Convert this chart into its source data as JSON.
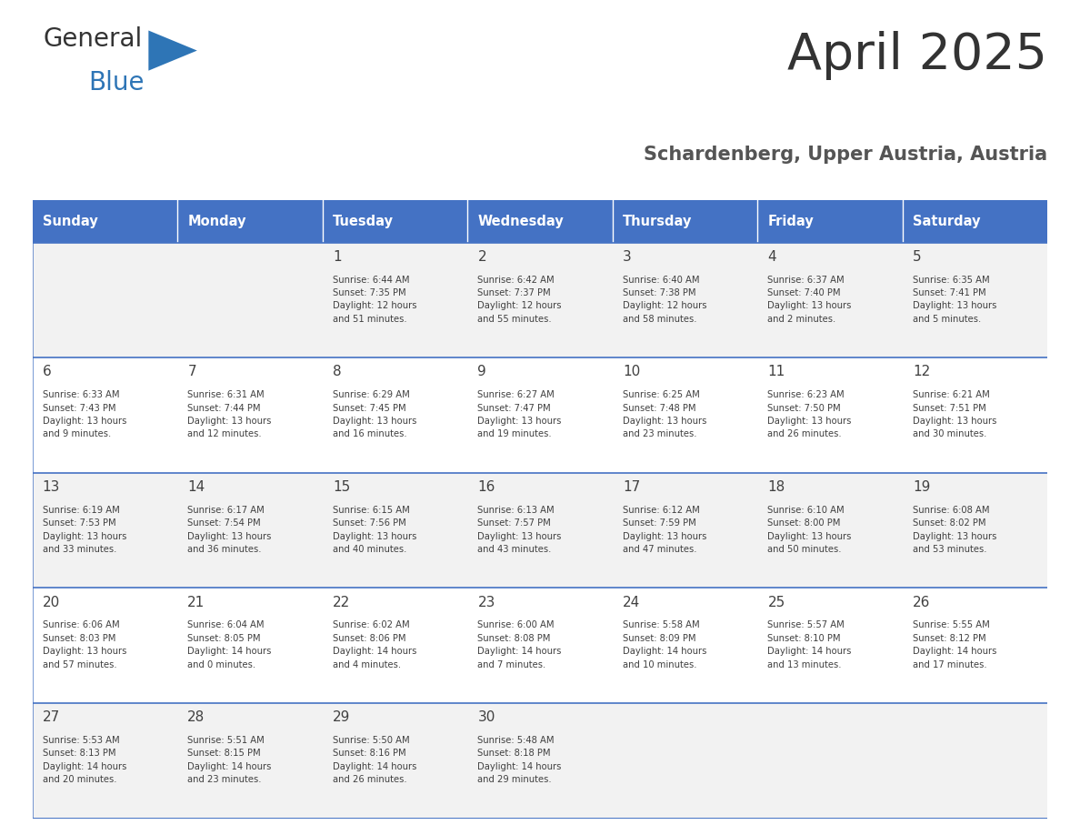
{
  "title": "April 2025",
  "subtitle": "Schardenberg, Upper Austria, Austria",
  "header_color": "#4472C4",
  "header_text_color": "#FFFFFF",
  "cell_bg_even": "#F2F2F2",
  "cell_bg_odd": "#FFFFFF",
  "border_color": "#4472C4",
  "text_color": "#404040",
  "logo_general_color": "#333333",
  "logo_blue_color": "#2E75B6",
  "days_of_week": [
    "Sunday",
    "Monday",
    "Tuesday",
    "Wednesday",
    "Thursday",
    "Friday",
    "Saturday"
  ],
  "calendar": [
    [
      {
        "day": "",
        "info": ""
      },
      {
        "day": "",
        "info": ""
      },
      {
        "day": "1",
        "info": "Sunrise: 6:44 AM\nSunset: 7:35 PM\nDaylight: 12 hours\nand 51 minutes."
      },
      {
        "day": "2",
        "info": "Sunrise: 6:42 AM\nSunset: 7:37 PM\nDaylight: 12 hours\nand 55 minutes."
      },
      {
        "day": "3",
        "info": "Sunrise: 6:40 AM\nSunset: 7:38 PM\nDaylight: 12 hours\nand 58 minutes."
      },
      {
        "day": "4",
        "info": "Sunrise: 6:37 AM\nSunset: 7:40 PM\nDaylight: 13 hours\nand 2 minutes."
      },
      {
        "day": "5",
        "info": "Sunrise: 6:35 AM\nSunset: 7:41 PM\nDaylight: 13 hours\nand 5 minutes."
      }
    ],
    [
      {
        "day": "6",
        "info": "Sunrise: 6:33 AM\nSunset: 7:43 PM\nDaylight: 13 hours\nand 9 minutes."
      },
      {
        "day": "7",
        "info": "Sunrise: 6:31 AM\nSunset: 7:44 PM\nDaylight: 13 hours\nand 12 minutes."
      },
      {
        "day": "8",
        "info": "Sunrise: 6:29 AM\nSunset: 7:45 PM\nDaylight: 13 hours\nand 16 minutes."
      },
      {
        "day": "9",
        "info": "Sunrise: 6:27 AM\nSunset: 7:47 PM\nDaylight: 13 hours\nand 19 minutes."
      },
      {
        "day": "10",
        "info": "Sunrise: 6:25 AM\nSunset: 7:48 PM\nDaylight: 13 hours\nand 23 minutes."
      },
      {
        "day": "11",
        "info": "Sunrise: 6:23 AM\nSunset: 7:50 PM\nDaylight: 13 hours\nand 26 minutes."
      },
      {
        "day": "12",
        "info": "Sunrise: 6:21 AM\nSunset: 7:51 PM\nDaylight: 13 hours\nand 30 minutes."
      }
    ],
    [
      {
        "day": "13",
        "info": "Sunrise: 6:19 AM\nSunset: 7:53 PM\nDaylight: 13 hours\nand 33 minutes."
      },
      {
        "day": "14",
        "info": "Sunrise: 6:17 AM\nSunset: 7:54 PM\nDaylight: 13 hours\nand 36 minutes."
      },
      {
        "day": "15",
        "info": "Sunrise: 6:15 AM\nSunset: 7:56 PM\nDaylight: 13 hours\nand 40 minutes."
      },
      {
        "day": "16",
        "info": "Sunrise: 6:13 AM\nSunset: 7:57 PM\nDaylight: 13 hours\nand 43 minutes."
      },
      {
        "day": "17",
        "info": "Sunrise: 6:12 AM\nSunset: 7:59 PM\nDaylight: 13 hours\nand 47 minutes."
      },
      {
        "day": "18",
        "info": "Sunrise: 6:10 AM\nSunset: 8:00 PM\nDaylight: 13 hours\nand 50 minutes."
      },
      {
        "day": "19",
        "info": "Sunrise: 6:08 AM\nSunset: 8:02 PM\nDaylight: 13 hours\nand 53 minutes."
      }
    ],
    [
      {
        "day": "20",
        "info": "Sunrise: 6:06 AM\nSunset: 8:03 PM\nDaylight: 13 hours\nand 57 minutes."
      },
      {
        "day": "21",
        "info": "Sunrise: 6:04 AM\nSunset: 8:05 PM\nDaylight: 14 hours\nand 0 minutes."
      },
      {
        "day": "22",
        "info": "Sunrise: 6:02 AM\nSunset: 8:06 PM\nDaylight: 14 hours\nand 4 minutes."
      },
      {
        "day": "23",
        "info": "Sunrise: 6:00 AM\nSunset: 8:08 PM\nDaylight: 14 hours\nand 7 minutes."
      },
      {
        "day": "24",
        "info": "Sunrise: 5:58 AM\nSunset: 8:09 PM\nDaylight: 14 hours\nand 10 minutes."
      },
      {
        "day": "25",
        "info": "Sunrise: 5:57 AM\nSunset: 8:10 PM\nDaylight: 14 hours\nand 13 minutes."
      },
      {
        "day": "26",
        "info": "Sunrise: 5:55 AM\nSunset: 8:12 PM\nDaylight: 14 hours\nand 17 minutes."
      }
    ],
    [
      {
        "day": "27",
        "info": "Sunrise: 5:53 AM\nSunset: 8:13 PM\nDaylight: 14 hours\nand 20 minutes."
      },
      {
        "day": "28",
        "info": "Sunrise: 5:51 AM\nSunset: 8:15 PM\nDaylight: 14 hours\nand 23 minutes."
      },
      {
        "day": "29",
        "info": "Sunrise: 5:50 AM\nSunset: 8:16 PM\nDaylight: 14 hours\nand 26 minutes."
      },
      {
        "day": "30",
        "info": "Sunrise: 5:48 AM\nSunset: 8:18 PM\nDaylight: 14 hours\nand 29 minutes."
      },
      {
        "day": "",
        "info": ""
      },
      {
        "day": "",
        "info": ""
      },
      {
        "day": "",
        "info": ""
      }
    ]
  ]
}
